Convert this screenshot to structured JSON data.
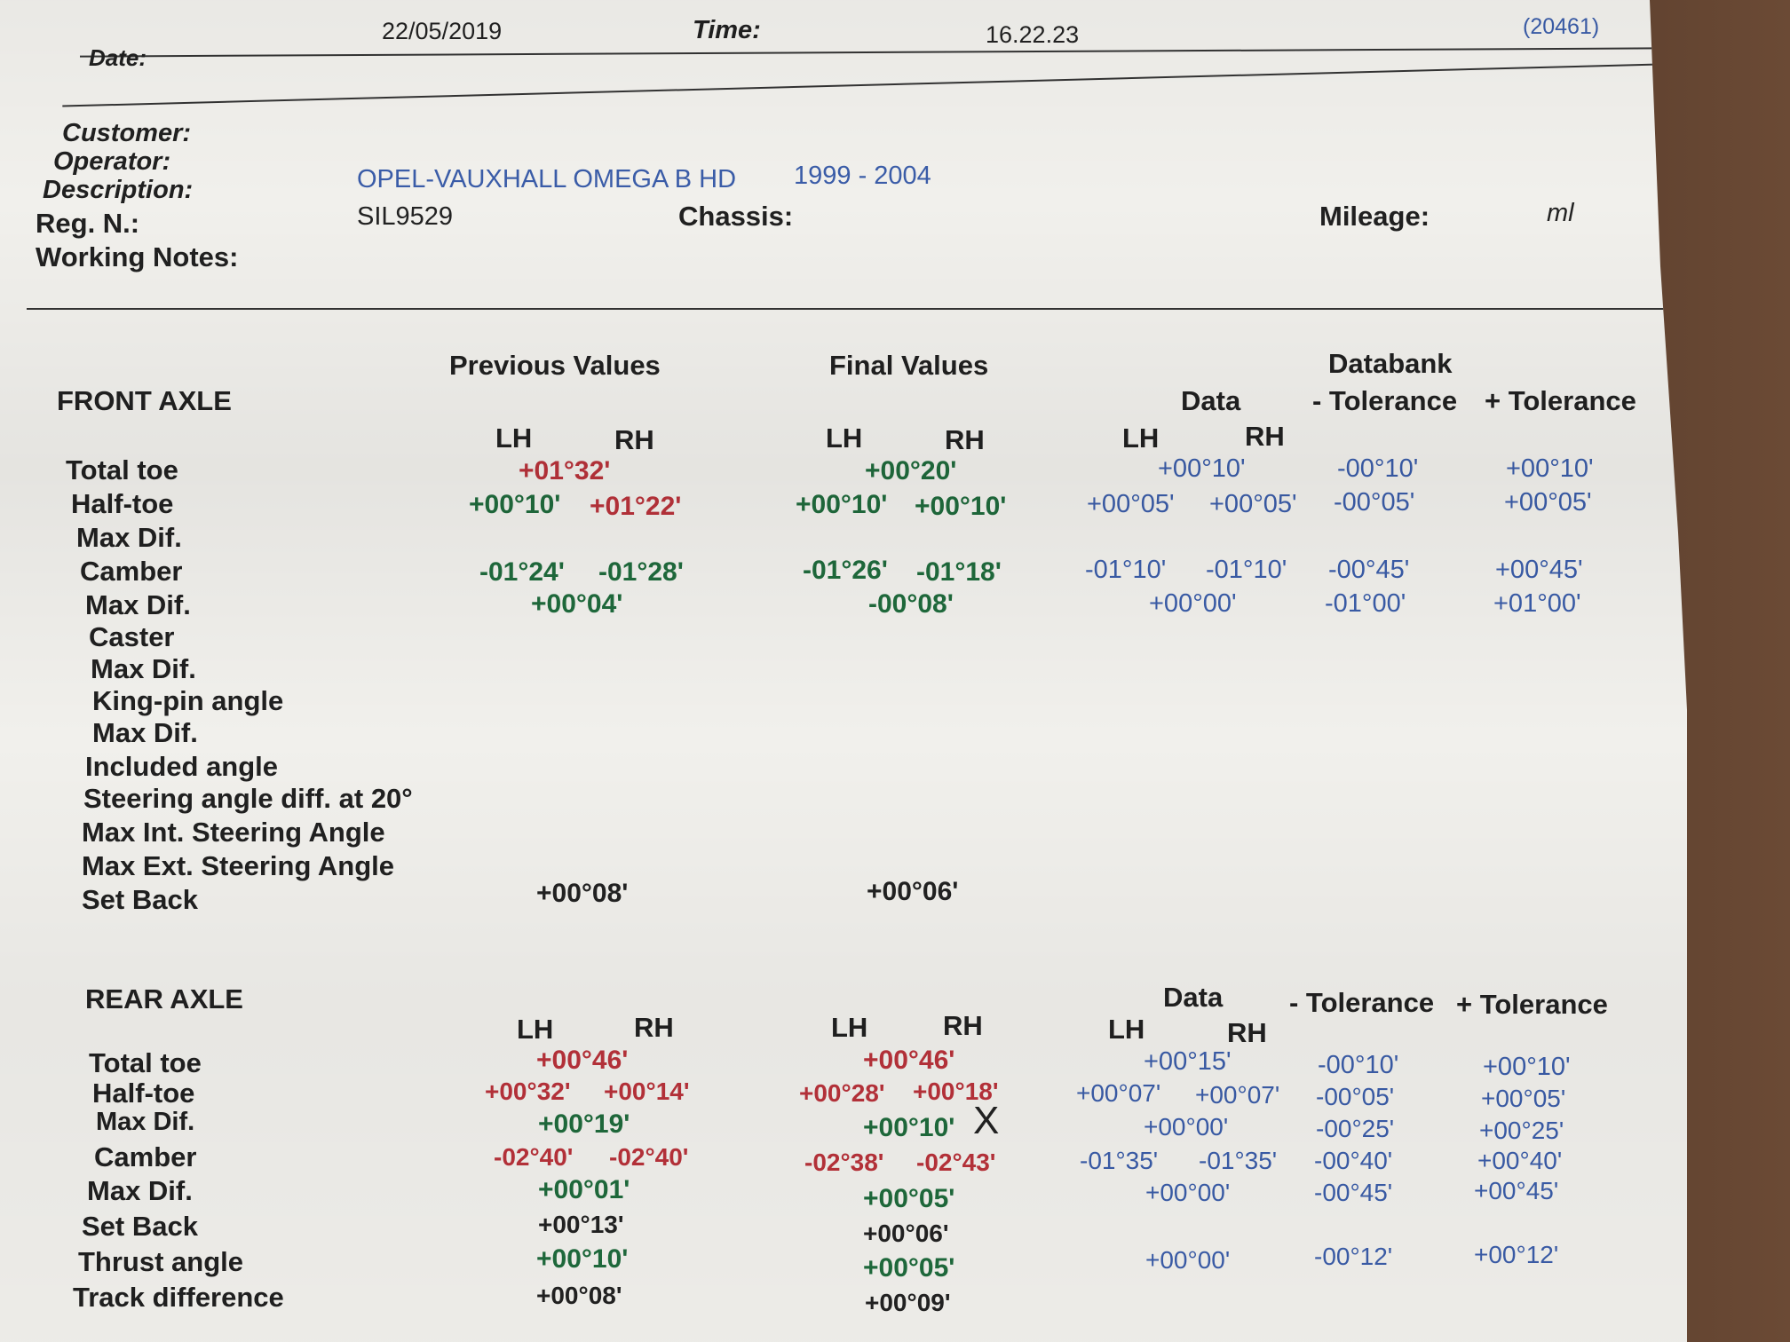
{
  "header": {
    "date_value": "22/05/2019",
    "time_label": "Time:",
    "time_value": "16.22.23",
    "ref": "(20461)",
    "date_label": "Date:"
  },
  "info": {
    "customer_label": "Customer:",
    "operator_label": "Operator:",
    "description_label": "Description:",
    "description_value": "OPEL-VAUXHALL OMEGA B HD",
    "years": "1999 - 2004",
    "reg_label": "Reg. N.:",
    "reg_value": "SIL9529",
    "chassis_label": "Chassis:",
    "mileage_label": "Mileage:",
    "mileage_unit": "ml",
    "notes_label": "Working Notes:"
  },
  "columns": {
    "previous": "Previous Values",
    "final": "Final Values",
    "databank": "Databank",
    "data": "Data",
    "minus_tol": "- Tolerance",
    "plus_tol": "+ Tolerance",
    "lh": "LH",
    "rh": "RH"
  },
  "front": {
    "title": "FRONT AXLE",
    "rows": {
      "total_toe": {
        "label": "Total toe",
        "prev": "+01°32'",
        "final": "+00°20'",
        "data": "+00°10'",
        "minus": "-00°10'",
        "plus": "+00°10'"
      },
      "half_toe": {
        "label": "Half-toe",
        "prev_lh": "+00°10'",
        "prev_rh": "+01°22'",
        "final_lh": "+00°10'",
        "final_rh": "+00°10'",
        "data_lh": "+00°05'",
        "data_rh": "+00°05'",
        "minus": "-00°05'",
        "plus": "+00°05'"
      },
      "max_dif1": {
        "label": "Max Dif."
      },
      "camber": {
        "label": "Camber",
        "prev_lh": "-01°24'",
        "prev_rh": "-01°28'",
        "final_lh": "-01°26'",
        "final_rh": "-01°18'",
        "data_lh": "-01°10'",
        "data_rh": "-01°10'",
        "minus": "-00°45'",
        "plus": "+00°45'"
      },
      "max_dif2": {
        "label": "Max Dif.",
        "prev": "+00°04'",
        "final": "-00°08'",
        "data": "+00°00'",
        "minus": "-01°00'",
        "plus": "+01°00'"
      },
      "caster": {
        "label": "Caster"
      },
      "max_dif3": {
        "label": "Max Dif."
      },
      "kingpin": {
        "label": "King-pin angle"
      },
      "max_dif4": {
        "label": "Max Dif."
      },
      "included": {
        "label": "Included angle"
      },
      "steering_diff": {
        "label": "Steering angle diff. at 20°"
      },
      "max_int": {
        "label": "Max Int. Steering Angle"
      },
      "max_ext": {
        "label": "Max Ext. Steering Angle"
      },
      "set_back": {
        "label": "Set Back",
        "prev": "+00°08'",
        "final": "+00°06'"
      }
    }
  },
  "rear": {
    "title": "REAR AXLE",
    "rows": {
      "total_toe": {
        "label": "Total toe",
        "prev": "+00°46'",
        "final": "+00°46'",
        "data": "+00°15'",
        "minus": "-00°10'",
        "plus": "+00°10'"
      },
      "half_toe": {
        "label": "Half-toe",
        "prev_lh": "+00°32'",
        "prev_rh": "+00°14'",
        "final_lh": "+00°28'",
        "final_rh": "+00°18'",
        "data_lh": "+00°07'",
        "data_rh": "+00°07'",
        "minus": "-00°05'",
        "plus": "+00°05'"
      },
      "max_dif1": {
        "label": "Max Dif.",
        "prev": "+00°19'",
        "final": "+00°10'",
        "data": "+00°00'",
        "minus": "-00°25'",
        "plus": "+00°25'"
      },
      "camber": {
        "label": "Camber",
        "prev_lh": "-02°40'",
        "prev_rh": "-02°40'",
        "final_lh": "-02°38'",
        "final_rh": "-02°43'",
        "data_lh": "-01°35'",
        "data_rh": "-01°35'",
        "minus": "-00°40'",
        "plus": "+00°40'"
      },
      "max_dif2": {
        "label": "Max Dif.",
        "prev": "+00°01'",
        "final": "+00°05'",
        "data": "+00°00'",
        "minus": "-00°45'",
        "plus": "+00°45'"
      },
      "set_back": {
        "label": "Set Back",
        "prev": "+00°13'",
        "final": "+00°06'"
      },
      "thrust": {
        "label": "Thrust angle",
        "prev": "+00°10'",
        "final": "+00°05'",
        "data": "+00°00'",
        "minus": "-00°12'",
        "plus": "+00°12'"
      },
      "track": {
        "label": "Track difference",
        "prev": "+00°08'",
        "final": "+00°09'"
      }
    }
  },
  "handwritten_mark": "X"
}
